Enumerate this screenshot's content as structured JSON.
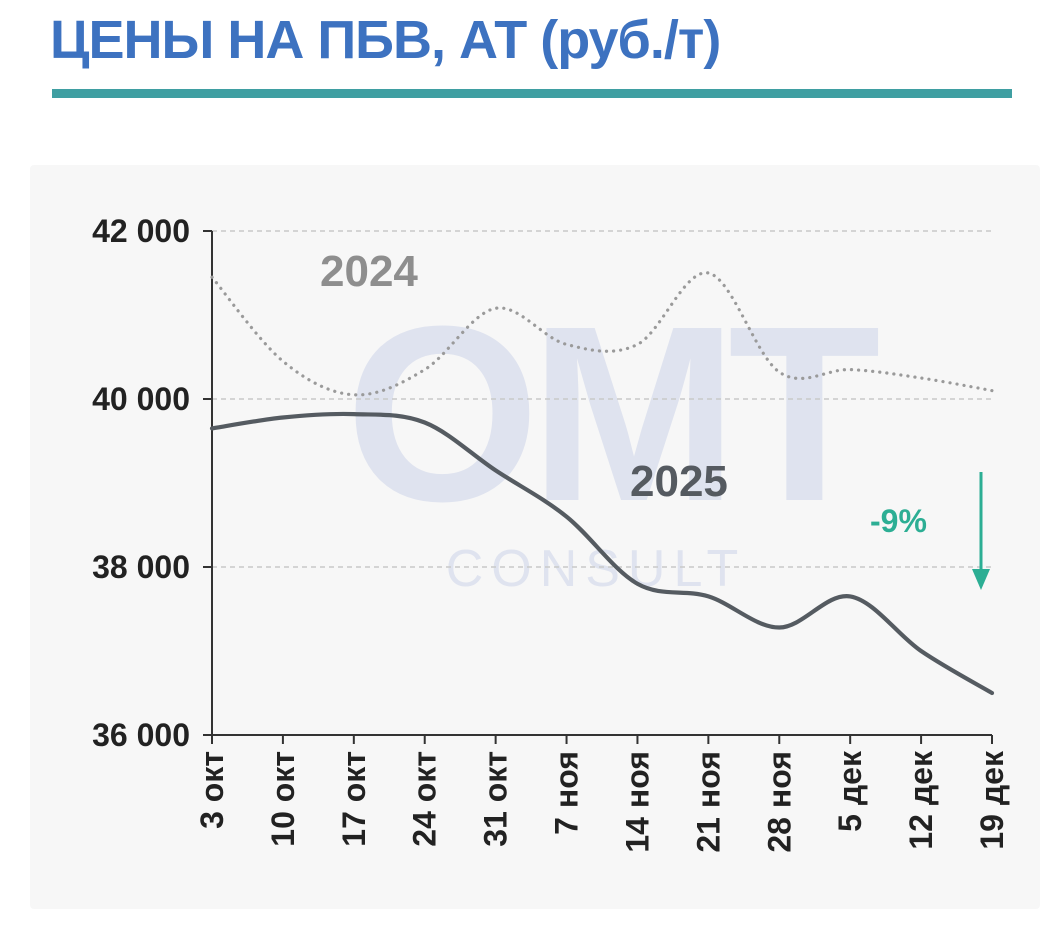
{
  "header": {
    "title": "ЦЕНЫ НА ПБВ, АТ (руб./т)"
  },
  "colors": {
    "title": "#3d72c0",
    "rule": "#3f9fa2",
    "series_2025": "#555b61",
    "series_2024": "#9a9a9a",
    "grid": "#c9c9c9",
    "axis": "#333333",
    "arrow": "#2cae94"
  },
  "watermark": {
    "line1": "OMT",
    "line2": "CONSULT"
  },
  "chart_data": {
    "type": "line",
    "title": "ЦЕНЫ НА ПБВ, АТ (руб./т)",
    "xlabel": "",
    "ylabel": "",
    "categories": [
      "3 окт",
      "10 окт",
      "17 окт",
      "24 окт",
      "31 окт",
      "7 ноя",
      "14 ноя",
      "21 ноя",
      "28 ноя",
      "5 дек",
      "12 дек",
      "19 дек"
    ],
    "y_ticks": [
      36000,
      38000,
      40000,
      42000
    ],
    "y_tick_labels": [
      "36 000",
      "38 000",
      "40 000",
      "42 000"
    ],
    "ylim": [
      36000,
      42000
    ],
    "grid": "horizontal dashed",
    "series": [
      {
        "name": "2024",
        "style": "dotted",
        "values": [
          41450,
          40450,
          40050,
          40350,
          41080,
          40650,
          40650,
          41500,
          40320,
          40350,
          40250,
          40100
        ]
      },
      {
        "name": "2025",
        "style": "solid",
        "values": [
          39650,
          39780,
          39820,
          39720,
          39150,
          38600,
          37800,
          37650,
          37280,
          37650,
          37000,
          36500
        ]
      }
    ],
    "annotations": [
      {
        "text": "-9%",
        "type": "down-arrow"
      }
    ]
  }
}
